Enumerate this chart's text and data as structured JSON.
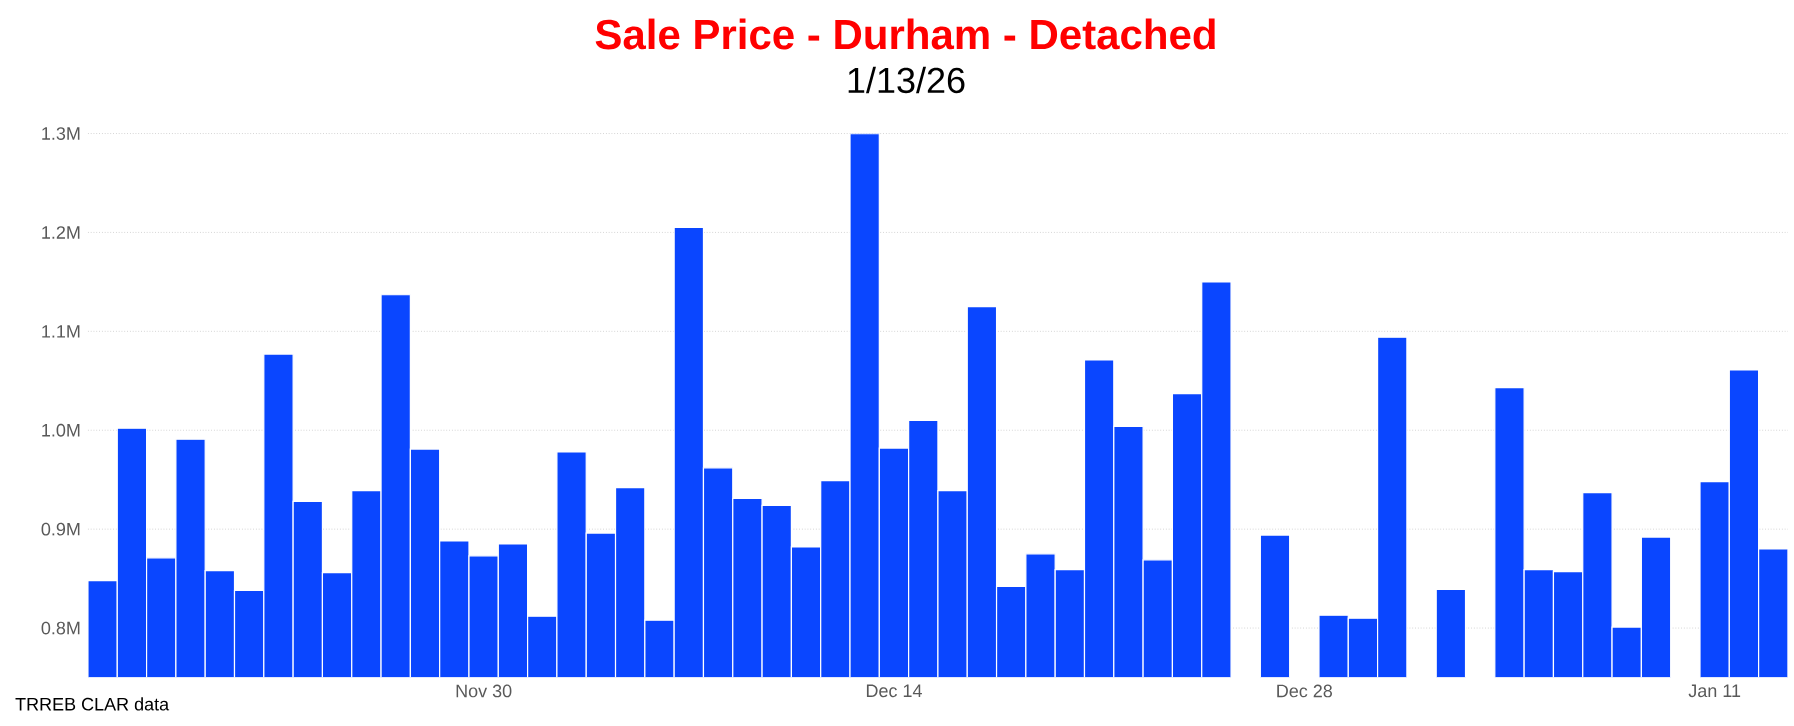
{
  "chart_data": {
    "type": "bar",
    "title": "Sale Price - Durham - Detached",
    "subtitle": "1/13/26",
    "categories": [
      null,
      null,
      null,
      null,
      null,
      null,
      null,
      null,
      null,
      null,
      null,
      null,
      null,
      "Nov 30",
      null,
      null,
      null,
      null,
      null,
      null,
      null,
      null,
      null,
      null,
      null,
      null,
      null,
      "Dec 14",
      null,
      null,
      null,
      null,
      null,
      null,
      null,
      null,
      null,
      null,
      null,
      null,
      null,
      "Dec 28",
      null,
      null,
      null,
      null,
      null,
      null,
      null,
      null,
      null,
      null,
      null,
      null,
      null,
      "Jan 11",
      null,
      null
    ],
    "values": [
      0.848,
      1.002,
      0.871,
      0.991,
      0.858,
      0.838,
      1.077,
      0.928,
      0.856,
      0.939,
      1.137,
      0.981,
      0.888,
      0.873,
      0.885,
      0.812,
      0.978,
      0.896,
      0.942,
      0.808,
      1.205,
      0.962,
      0.931,
      0.924,
      0.882,
      0.949,
      1.3,
      0.982,
      1.01,
      0.939,
      1.125,
      0.842,
      0.875,
      0.859,
      1.071,
      1.004,
      0.869,
      1.037,
      1.15,
      null,
      0.894,
      null,
      0.813,
      0.81,
      1.094,
      null,
      0.839,
      null,
      1.043,
      0.859,
      0.857,
      0.937,
      0.801,
      0.892,
      null,
      0.948,
      1.061,
      0.88
    ],
    "color": "#0a46ff",
    "ylim": [
      0.75,
      1.3
    ],
    "yticks": [
      {
        "value": 0.8,
        "label": "0.8M"
      },
      {
        "value": 0.9,
        "label": "0.9M"
      },
      {
        "value": 1.0,
        "label": "1.0M"
      },
      {
        "value": 1.1,
        "label": "1.1M"
      },
      {
        "value": 1.2,
        "label": "1.2M"
      },
      {
        "value": 1.3,
        "label": "1.3M"
      }
    ],
    "grid": "y",
    "annotations": [
      "TRREB CLAR data"
    ]
  }
}
